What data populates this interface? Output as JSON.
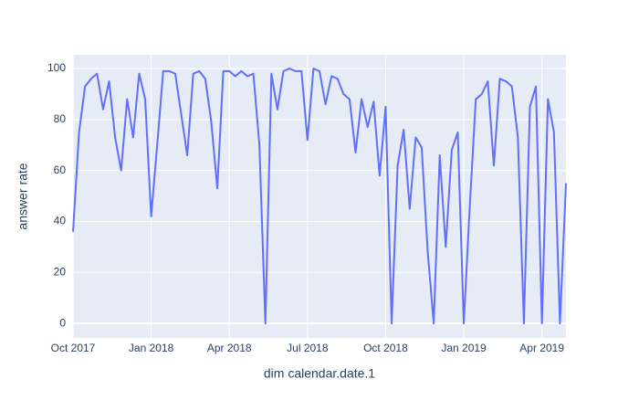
{
  "chart_data": {
    "type": "line",
    "x_label": "dim calendar.date.1",
    "y_label": "answer rate",
    "categories": [
      "Oct 2017",
      null,
      null,
      null,
      null,
      null,
      null,
      null,
      null,
      null,
      null,
      null,
      null,
      "Jan 2018",
      null,
      null,
      null,
      null,
      null,
      null,
      null,
      null,
      null,
      null,
      null,
      null,
      "Apr 2018",
      null,
      null,
      null,
      null,
      null,
      null,
      null,
      null,
      null,
      null,
      null,
      null,
      "Jul 2018",
      null,
      null,
      null,
      null,
      null,
      null,
      null,
      null,
      null,
      null,
      null,
      null,
      "Oct 2018",
      null,
      null,
      null,
      null,
      null,
      null,
      null,
      null,
      null,
      null,
      null,
      null,
      "Jan 2019",
      null,
      null,
      null,
      null,
      null,
      null,
      null,
      null,
      null,
      null,
      null,
      null,
      "Apr 2019",
      null,
      null,
      null,
      null
    ],
    "series": [
      {
        "name": "answer rate",
        "color": "#636efa",
        "values": [
          36,
          75,
          93,
          96,
          98,
          84,
          95,
          73,
          60,
          88,
          73,
          98,
          88,
          42,
          70,
          99,
          99,
          98,
          82,
          66,
          98,
          99,
          96,
          79,
          53,
          99,
          99,
          97,
          99,
          97,
          98,
          70,
          0,
          98,
          84,
          99,
          100,
          99,
          99,
          72,
          100,
          99,
          86,
          97,
          96,
          90,
          88,
          67,
          88,
          77,
          87,
          58,
          85,
          0,
          62,
          76,
          45,
          73,
          69,
          28,
          0,
          66,
          30,
          68,
          75,
          0,
          46,
          88,
          90,
          95,
          62,
          96,
          95,
          93,
          73,
          0,
          85,
          93,
          0,
          88,
          75,
          0,
          55
        ]
      }
    ],
    "ylim": [
      -5.7,
      105.4
    ],
    "yticks": [
      0,
      20,
      40,
      60,
      80,
      100
    ],
    "grid": true,
    "background": "#e5ecf6"
  }
}
